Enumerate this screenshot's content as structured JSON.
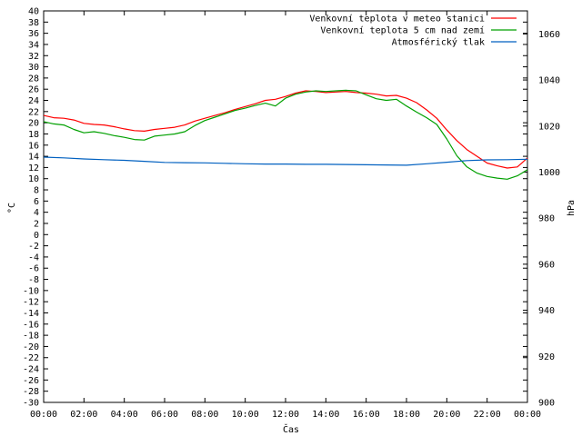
{
  "chart_data": {
    "type": "line",
    "xlabel": "Čas",
    "ylabel": "°C",
    "y2label": "hPa",
    "x_ticks": [
      "00:00",
      "02:00",
      "04:00",
      "06:00",
      "08:00",
      "10:00",
      "12:00",
      "14:00",
      "16:00",
      "18:00",
      "20:00",
      "22:00",
      "00:00"
    ],
    "xlim_hours": [
      0,
      24
    ],
    "ylim": [
      -30,
      40
    ],
    "y_ticks": [
      40,
      38,
      36,
      34,
      32,
      30,
      28,
      26,
      24,
      22,
      20,
      18,
      16,
      14,
      12,
      10,
      8,
      6,
      4,
      2,
      0,
      -2,
      -4,
      -6,
      -8,
      -10,
      -12,
      -14,
      -16,
      -18,
      -20,
      -22,
      -24,
      -26,
      -28,
      -30
    ],
    "y2lim": [
      900,
      1070
    ],
    "y2_ticks": [
      1060,
      1040,
      1020,
      1000,
      980,
      960,
      940,
      920,
      900
    ],
    "grid": false,
    "legend_position": "top-right",
    "series": [
      {
        "name": "Venkovní teplota v meteo stanici",
        "color": "#ff0000",
        "axis": "left",
        "x": [
          0,
          0.5,
          1,
          1.5,
          2,
          2.5,
          3,
          3.5,
          4,
          4.5,
          5,
          5.5,
          6,
          6.5,
          7,
          7.5,
          8,
          8.5,
          9,
          9.5,
          10,
          10.5,
          11,
          11.5,
          12,
          12.5,
          13,
          13.5,
          14,
          14.5,
          15,
          15.5,
          16,
          16.5,
          17,
          17.5,
          18,
          18.5,
          19,
          19.5,
          20,
          20.5,
          21,
          21.5,
          22,
          22.5,
          23,
          23.5,
          24
        ],
        "values": [
          21.3,
          20.9,
          20.8,
          20.5,
          19.9,
          19.7,
          19.6,
          19.3,
          18.9,
          18.6,
          18.5,
          18.8,
          19.0,
          19.2,
          19.6,
          20.3,
          20.8,
          21.3,
          21.8,
          22.4,
          22.9,
          23.4,
          24.0,
          24.2,
          24.7,
          25.3,
          25.7,
          25.6,
          25.4,
          25.5,
          25.6,
          25.4,
          25.3,
          25.1,
          24.8,
          24.9,
          24.4,
          23.6,
          22.3,
          20.8,
          18.7,
          16.8,
          15.2,
          14.0,
          12.8,
          12.3,
          11.9,
          12.1,
          13.7
        ]
      },
      {
        "name": "Venkovní teplota 5 cm nad zemí",
        "color": "#00a000",
        "axis": "left",
        "x": [
          0,
          0.5,
          1,
          1.5,
          2,
          2.5,
          3,
          3.5,
          4,
          4.5,
          5,
          5.5,
          6,
          6.5,
          7,
          7.5,
          8,
          8.5,
          9,
          9.5,
          10,
          10.5,
          11,
          11.5,
          12,
          12.5,
          13,
          13.5,
          14,
          14.5,
          15,
          15.5,
          16,
          16.5,
          17,
          17.5,
          18,
          18.5,
          19,
          19.5,
          20,
          20.5,
          21,
          21.5,
          22,
          22.5,
          23,
          23.5,
          24
        ],
        "values": [
          20.2,
          19.8,
          19.6,
          18.8,
          18.2,
          18.4,
          18.1,
          17.7,
          17.4,
          17.0,
          16.9,
          17.6,
          17.8,
          18.0,
          18.4,
          19.5,
          20.4,
          21.0,
          21.6,
          22.2,
          22.6,
          23.1,
          23.5,
          23.0,
          24.4,
          25.1,
          25.5,
          25.7,
          25.6,
          25.7,
          25.8,
          25.7,
          25.0,
          24.3,
          24.0,
          24.2,
          23.0,
          21.9,
          20.9,
          19.7,
          17.1,
          14.1,
          12.1,
          11.0,
          10.4,
          10.1,
          9.9,
          10.5,
          11.6
        ]
      },
      {
        "name": "Atmosférický tlak",
        "color": "#0060c0",
        "axis": "right",
        "x": [
          0,
          1,
          2,
          3,
          4,
          5,
          6,
          7,
          8,
          9,
          10,
          11,
          12,
          13,
          14,
          15,
          16,
          17,
          18,
          19,
          20,
          21,
          22,
          23,
          24
        ],
        "values": [
          1006.5,
          1006.2,
          1005.7,
          1005.4,
          1005.1,
          1004.7,
          1004.2,
          1004.1,
          1004.0,
          1003.8,
          1003.6,
          1003.5,
          1003.5,
          1003.4,
          1003.4,
          1003.3,
          1003.2,
          1003.1,
          1003.0,
          1003.6,
          1004.3,
          1005.0,
          1005.3,
          1005.4,
          1005.6
        ]
      }
    ]
  }
}
